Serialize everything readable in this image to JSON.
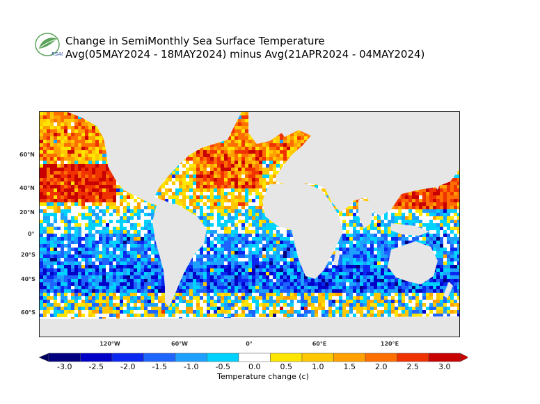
{
  "header": {
    "logo_text": "RSAU",
    "title_line1": "Change in SemiMonthly Sea Surface Temperature",
    "title_line2": "Avg(05MAY2024 - 18MAY2024) minus Avg(21APR2024 - 04MAY2024)"
  },
  "map": {
    "lat_labels": [
      "60°N",
      "40°N",
      "20°N",
      "0°",
      "20°S",
      "40°S",
      "60°S"
    ],
    "lon_labels": [
      "120°W",
      "60°W",
      "0°",
      "60°E",
      "120°E"
    ],
    "land_color": "#e6e6e6",
    "ocean_background": "#ffffff"
  },
  "colorbar": {
    "title": "Temperature change  (c)",
    "tick_labels": [
      "-3.0",
      "-2.5",
      "-2.0",
      "-1.5",
      "-1.0",
      "-0.5",
      "0.0",
      "0.5",
      "1.0",
      "1.5",
      "2.0",
      "2.5",
      "3.0"
    ],
    "colors": [
      "#000080",
      "#0000c8",
      "#0a28f0",
      "#1e64ff",
      "#1ea0ff",
      "#00d2ff",
      "#ffffff",
      "#ffe600",
      "#ffc800",
      "#ffa000",
      "#ff6e00",
      "#f03200",
      "#c80000"
    ],
    "low_arrow_color": "#000060",
    "high_arrow_color": "#c80000"
  }
}
